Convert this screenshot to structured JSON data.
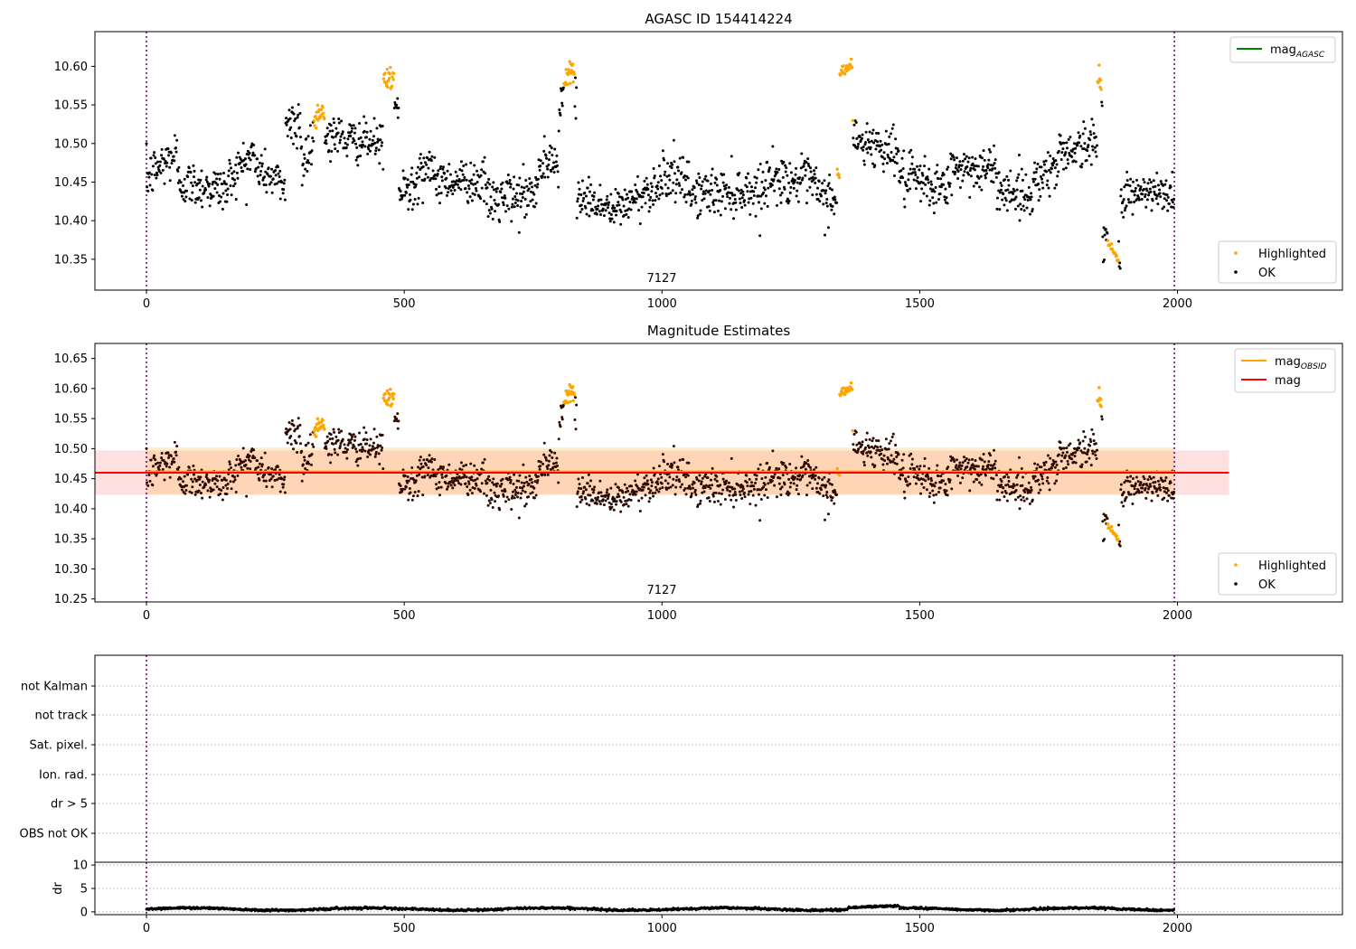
{
  "chart_data": [
    {
      "id": "p1",
      "type": "scatter",
      "title": "AGASC ID 154414224",
      "annotation": "7127",
      "xlabel": "",
      "ylabel": "",
      "xlim": [
        -100,
        2320
      ],
      "ylim": [
        10.31,
        10.645
      ],
      "xticks": [
        0,
        500,
        1000,
        1500,
        2000
      ],
      "xtick_labels": [
        "0",
        "500",
        "1000",
        "1500",
        "2000"
      ],
      "yticks": [
        10.35,
        10.4,
        10.45,
        10.5,
        10.55,
        10.6
      ],
      "ytick_labels": [
        "10.35",
        "10.40",
        "10.45",
        "10.50",
        "10.55",
        "10.60"
      ],
      "vlines": [
        0,
        1994
      ],
      "legend_top": {
        "placement": "upper-right",
        "entries": [
          {
            "label": "mag",
            "sub": "AGASC",
            "color": "#008000"
          }
        ]
      },
      "legend_bottom": {
        "placement": "lower-right",
        "entries": [
          {
            "label": "Highlighted",
            "color": "#FFA500"
          },
          {
            "label": "OK",
            "color": "#000000"
          }
        ]
      },
      "series": [
        {
          "name": "OK",
          "color": "#000000",
          "count": 1994
        },
        {
          "name": "Highlighted",
          "color": "#FFA500",
          "ranges": [
            [
              325,
              345
            ],
            [
              460,
              480
            ],
            [
              810,
              830
            ],
            [
              1340,
              1370
            ],
            [
              1845,
              1852
            ],
            [
              1865,
              1885
            ]
          ]
        }
      ]
    },
    {
      "id": "p2",
      "type": "scatter",
      "title": "Magnitude Estimates",
      "annotation": "7127",
      "xlim": [
        -100,
        2320
      ],
      "ylim": [
        10.245,
        10.675
      ],
      "xticks": [
        0,
        500,
        1000,
        1500,
        2000
      ],
      "xtick_labels": [
        "0",
        "500",
        "1000",
        "1500",
        "2000"
      ],
      "yticks": [
        10.25,
        10.3,
        10.35,
        10.4,
        10.45,
        10.5,
        10.55,
        10.6,
        10.65
      ],
      "ytick_labels": [
        "10.25",
        "10.30",
        "10.35",
        "10.40",
        "10.45",
        "10.50",
        "10.55",
        "10.60",
        "10.65"
      ],
      "vlines": [
        0,
        1994
      ],
      "mag": 10.46,
      "mag_band": [
        10.423,
        10.497
      ],
      "mag_band_x": [
        -100,
        2100
      ],
      "mag_obsid": 10.462,
      "mag_obsid_band": [
        10.424,
        10.502
      ],
      "mag_obsid_band_x": [
        0,
        1994
      ],
      "legend_top": {
        "placement": "upper-right",
        "entries": [
          {
            "label": "mag",
            "sub": "OBSID",
            "color": "#FFA500"
          },
          {
            "label": "mag",
            "sub": "",
            "color": "#FF0000"
          }
        ]
      },
      "legend_bottom": {
        "placement": "lower-right",
        "entries": [
          {
            "label": "Highlighted",
            "color": "#FFA500"
          },
          {
            "label": "OK",
            "color": "#000000"
          }
        ]
      }
    },
    {
      "id": "p3",
      "type": "category-flags",
      "categories": [
        "not Kalman",
        "not track",
        "Sat. pixel.",
        "Ion. rad.",
        "dr > 5",
        "OBS not OK"
      ],
      "xlim": [
        -100,
        2320
      ],
      "vlines": [
        0,
        1994
      ]
    },
    {
      "id": "p4",
      "type": "scatter",
      "ylabel": "dr",
      "xlim": [
        -100,
        2320
      ],
      "ylim": [
        -0.6,
        10.6
      ],
      "yticks": [
        0,
        5,
        10
      ],
      "ytick_labels": [
        "0",
        "5",
        "10"
      ],
      "xticks": [
        0,
        500,
        1000,
        1500,
        2000
      ],
      "xtick_labels": [
        "0",
        "500",
        "1000",
        "1500",
        "2000"
      ],
      "vlines": [
        0,
        1994
      ],
      "typical_dr": 0.6
    }
  ]
}
